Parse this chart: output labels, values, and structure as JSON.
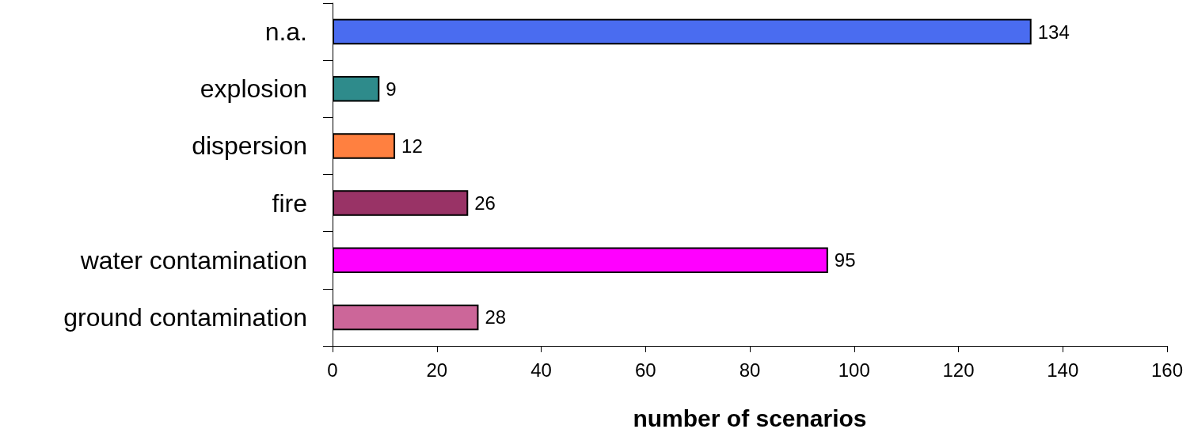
{
  "chart_data": {
    "type": "bar",
    "orientation": "horizontal",
    "xlabel": "number of scenarios",
    "categories": [
      "n.a.",
      "explosion",
      "dispersion",
      "fire",
      "water contamination",
      "ground contamination"
    ],
    "values": [
      134,
      9,
      12,
      26,
      95,
      28
    ],
    "colors": [
      "#4a6cf0",
      "#2e8b8b",
      "#ff8040",
      "#993366",
      "#ff00ff",
      "#cc6699"
    ],
    "xlim": [
      0,
      160
    ],
    "xticks": [
      0,
      20,
      40,
      60,
      80,
      100,
      120,
      140,
      160
    ],
    "data_labels": true
  }
}
